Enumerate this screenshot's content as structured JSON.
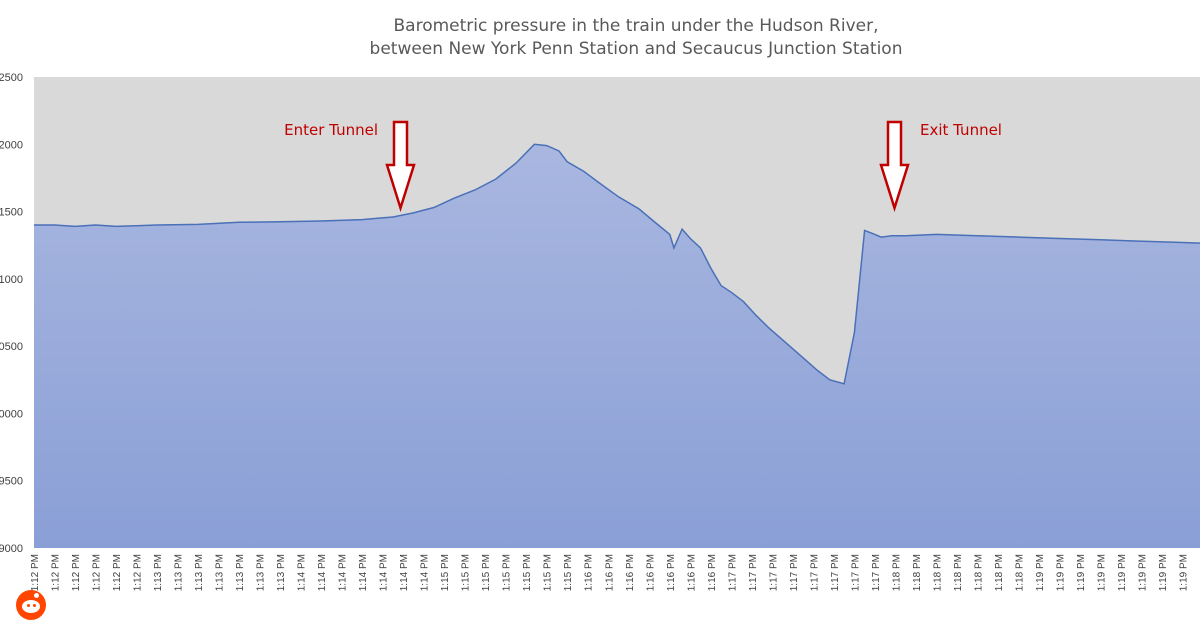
{
  "chart_data": {
    "type": "area",
    "title_lines": [
      "Barometric pressure in the train under the Hudson River,",
      "between New York Penn Station and Secaucus Junction Station"
    ],
    "xlabel": "",
    "ylabel": "",
    "y_ticks_visible": [
      "2500",
      "2000",
      "1500",
      "1000",
      "0500",
      "0000",
      "9500",
      "9000"
    ],
    "ylim": [
      99000,
      102500
    ],
    "grid": false,
    "plot_background": "#d9d9d9",
    "fill_top_color": "#a9b7e0",
    "fill_bottom_color": "#8a9fd6",
    "line_color": "#4a70b8",
    "x_tick_labels": [
      "1:12 PM",
      "1:12 PM",
      "1:12 PM",
      "1:12 PM",
      "1:12 PM",
      "1:12 PM",
      "1:13 PM",
      "1:13 PM",
      "1:13 PM",
      "1:13 PM",
      "1:13 PM",
      "1:13 PM",
      "1:13 PM",
      "1:14 PM",
      "1:14 PM",
      "1:14 PM",
      "1:14 PM",
      "1:14 PM",
      "1:14 PM",
      "1:14 PM",
      "1:15 PM",
      "1:15 PM",
      "1:15 PM",
      "1:15 PM",
      "1:15 PM",
      "1:15 PM",
      "1:15 PM",
      "1:16 PM",
      "1:16 PM",
      "1:16 PM",
      "1:16 PM",
      "1:16 PM",
      "1:16 PM",
      "1:16 PM",
      "1:17 PM",
      "1:17 PM",
      "1:17 PM",
      "1:17 PM",
      "1:17 PM",
      "1:17 PM",
      "1:17 PM",
      "1:17 PM",
      "1:18 PM",
      "1:18 PM",
      "1:18 PM",
      "1:18 PM",
      "1:18 PM",
      "1:18 PM",
      "1:18 PM",
      "1:19 PM",
      "1:19 PM",
      "1:19 PM",
      "1:19 PM",
      "1:19 PM",
      "1:19 PM",
      "1:19 PM",
      "1:19 PM"
    ],
    "series": [
      {
        "x_index": [
          0,
          1,
          2,
          3,
          4,
          5,
          6,
          8,
          10,
          12,
          14,
          16,
          17.5,
          18.5,
          19.5,
          20.5,
          21.5,
          22.5,
          23.5,
          24.4,
          25,
          25.6,
          26,
          26.8,
          27.5,
          28.5,
          29.5,
          30.2,
          31,
          31.2,
          31.6,
          32,
          32.5,
          33,
          33.5,
          34,
          34.6,
          35.2,
          35.8,
          36.4,
          37,
          37.6,
          38.2,
          38.8,
          39.5,
          40,
          40.5,
          41,
          41.3,
          41.8,
          42.5,
          44,
          46,
          48,
          50,
          52,
          54,
          56,
          57
        ],
        "y": [
          101400,
          101400,
          101390,
          101400,
          101390,
          101395,
          101400,
          101405,
          101420,
          101425,
          101430,
          101440,
          101460,
          101490,
          101530,
          101600,
          101660,
          101740,
          101860,
          102000,
          101990,
          101950,
          101870,
          101800,
          101720,
          101610,
          101520,
          101430,
          101330,
          101230,
          101370,
          101300,
          101230,
          101080,
          100950,
          100900,
          100830,
          100730,
          100640,
          100560,
          100480,
          100400,
          100320,
          100250,
          100220,
          100600,
          101360,
          101330,
          101310,
          101320,
          101320,
          101330,
          101320,
          101310,
          101300,
          101290,
          101280,
          101270,
          101265
        ]
      }
    ],
    "annotations": [
      {
        "text": "Enter Tunnel",
        "arrow_x_index": 17.5
      },
      {
        "text": "Exit Tunnel",
        "arrow_x_index": 40.5
      }
    ]
  },
  "watermark_icon": "reddit-logo-icon"
}
